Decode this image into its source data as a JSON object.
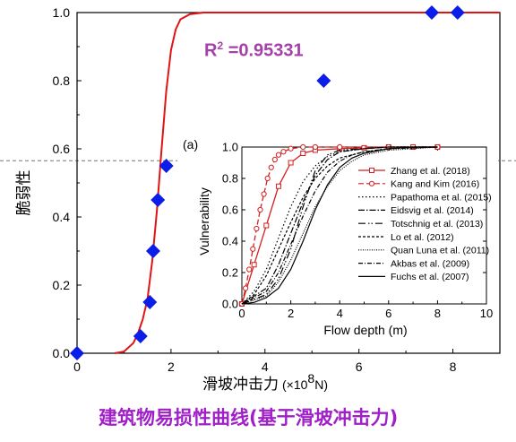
{
  "chart_data": [
    {
      "type": "scatter",
      "xlabel_main": "滑坡冲击力",
      "xlabel_unit": "(×10",
      "xlabel_exp": "8",
      "xlabel_end": "N)",
      "ylabel": "脆弱性",
      "xlim": [
        0,
        9
      ],
      "ylim": [
        0,
        1.0
      ],
      "xticks": [
        "0",
        "2",
        "4",
        "6",
        "8"
      ],
      "yticks": [
        "0.0",
        "0.2",
        "0.4",
        "0.6",
        "0.8",
        "1.0"
      ],
      "points_color": "#0a1ee8",
      "points": [
        [
          0,
          0.0
        ],
        [
          1.35,
          0.05
        ],
        [
          1.55,
          0.15
        ],
        [
          1.62,
          0.3
        ],
        [
          1.72,
          0.45
        ],
        [
          1.9,
          0.55
        ],
        [
          5.25,
          0.8
        ],
        [
          7.55,
          1.0
        ],
        [
          8.1,
          1.0
        ]
      ],
      "curve_color": "#e01414",
      "curve": [
        [
          0.8,
          0.0
        ],
        [
          1.0,
          0.005
        ],
        [
          1.2,
          0.03
        ],
        [
          1.3,
          0.06
        ],
        [
          1.4,
          0.1
        ],
        [
          1.5,
          0.16
        ],
        [
          1.6,
          0.27
        ],
        [
          1.7,
          0.42
        ],
        [
          1.8,
          0.6
        ],
        [
          1.9,
          0.77
        ],
        [
          2.0,
          0.89
        ],
        [
          2.1,
          0.95
        ],
        [
          2.2,
          0.98
        ],
        [
          2.4,
          0.995
        ],
        [
          2.7,
          1.0
        ],
        [
          9.0,
          1.0
        ]
      ],
      "r2_label": "R",
      "r2_exp": "2",
      "r2_value": " =0.95331",
      "reference_line_y": 0.565
    },
    {
      "type": "line",
      "panel_label": "(a)",
      "xlabel": "Flow depth (m)",
      "ylabel": "Vulnerability",
      "xlim": [
        0,
        10
      ],
      "ylim": [
        0,
        1.0
      ],
      "xticks": [
        "0",
        "2",
        "4",
        "6",
        "8",
        "10"
      ],
      "yticks": [
        "0.0",
        "0.2",
        "0.4",
        "0.6",
        "0.8",
        "1.0"
      ],
      "legend_position": "right",
      "series": [
        {
          "name": "Zhang et al. (2018)",
          "color": "#d42020",
          "dash": "",
          "marker": "square",
          "x": [
            0,
            0.5,
            1.0,
            1.5,
            2.0,
            2.5,
            3,
            4,
            5,
            6,
            7,
            8
          ],
          "y": [
            0,
            0.25,
            0.5,
            0.75,
            0.9,
            0.96,
            0.98,
            0.99,
            0.995,
            1.0,
            1.0,
            1.0
          ]
        },
        {
          "name": "Kang and Kim (2016)",
          "color": "#d42020",
          "dash": "6,3",
          "marker": "circle",
          "x": [
            0,
            0.15,
            0.3,
            0.45,
            0.6,
            0.75,
            0.9,
            1.05,
            1.2,
            1.35,
            1.5,
            1.7,
            2.0,
            2.5,
            3,
            4,
            6,
            8
          ],
          "y": [
            0,
            0.1,
            0.22,
            0.35,
            0.48,
            0.6,
            0.7,
            0.8,
            0.87,
            0.92,
            0.95,
            0.97,
            0.99,
            1.0,
            1.0,
            1.0,
            1.0,
            1.0
          ]
        },
        {
          "name": "Papathoma et al. (2015)",
          "color": "#000000",
          "dash": "1.5,2.5",
          "marker": "",
          "x": [
            0,
            0.5,
            1,
            1.5,
            2,
            2.5,
            3,
            3.5,
            4,
            5,
            6,
            8
          ],
          "y": [
            0,
            0.08,
            0.22,
            0.42,
            0.62,
            0.78,
            0.88,
            0.94,
            0.97,
            0.99,
            1.0,
            1.0
          ]
        },
        {
          "name": "Eidsvig et al. (2014)",
          "color": "#000000",
          "dash": "7,2,1.5,2",
          "marker": "",
          "x": [
            0,
            1,
            1.5,
            2,
            2.5,
            3,
            3.5,
            4,
            5,
            6,
            8
          ],
          "y": [
            0,
            0.1,
            0.25,
            0.45,
            0.65,
            0.82,
            0.92,
            0.97,
            0.99,
            1.0,
            1.0
          ]
        },
        {
          "name": "Totschnig et al. (2013)",
          "color": "#000000",
          "dash": "8,3,1.5,2,1.5,3",
          "marker": "",
          "x": [
            0,
            1,
            1.5,
            2,
            2.5,
            3,
            3.5,
            4,
            5,
            6,
            8
          ],
          "y": [
            0,
            0.06,
            0.16,
            0.35,
            0.62,
            0.85,
            0.95,
            0.98,
            0.99,
            1.0,
            1.0
          ]
        },
        {
          "name": "Lo et al. (2012)",
          "color": "#000000",
          "dash": "3,2",
          "marker": "",
          "x": [
            0,
            0.5,
            1,
            1.5,
            2,
            2.5,
            3,
            3.5,
            4,
            5,
            6,
            8
          ],
          "y": [
            0,
            0.06,
            0.18,
            0.35,
            0.52,
            0.68,
            0.8,
            0.88,
            0.93,
            0.97,
            0.99,
            1.0
          ]
        },
        {
          "name": "Quan Luna et al. (2011)",
          "color": "#000000",
          "dash": "1,1.5",
          "marker": "",
          "x": [
            0,
            1,
            1.5,
            2,
            2.5,
            3,
            3.5,
            4,
            4.5,
            5,
            6,
            7,
            8
          ],
          "y": [
            0,
            0.05,
            0.14,
            0.28,
            0.45,
            0.62,
            0.75,
            0.85,
            0.91,
            0.95,
            0.98,
            0.99,
            1.0
          ]
        },
        {
          "name": "Akbas et al. (2009)",
          "color": "#000000",
          "dash": "5,2,1,2",
          "marker": "",
          "x": [
            0,
            1,
            1.5,
            2,
            2.5,
            3,
            3.5,
            4,
            4.5,
            5,
            6,
            8
          ],
          "y": [
            0,
            0.08,
            0.2,
            0.38,
            0.56,
            0.72,
            0.84,
            0.91,
            0.95,
            0.97,
            0.99,
            1.0
          ]
        },
        {
          "name": "Fuchs et al. (2007)",
          "color": "#000000",
          "dash": "",
          "marker": "",
          "x": [
            0,
            0.5,
            1,
            1.5,
            2,
            2.5,
            3,
            3.5,
            4,
            4.5,
            5,
            6,
            7,
            8
          ],
          "y": [
            0,
            0.01,
            0.04,
            0.1,
            0.22,
            0.4,
            0.6,
            0.76,
            0.87,
            0.93,
            0.96,
            0.99,
            1.0,
            1.0
          ]
        }
      ]
    }
  ],
  "caption": "建筑物易损性曲线(基于滑坡冲击力)"
}
